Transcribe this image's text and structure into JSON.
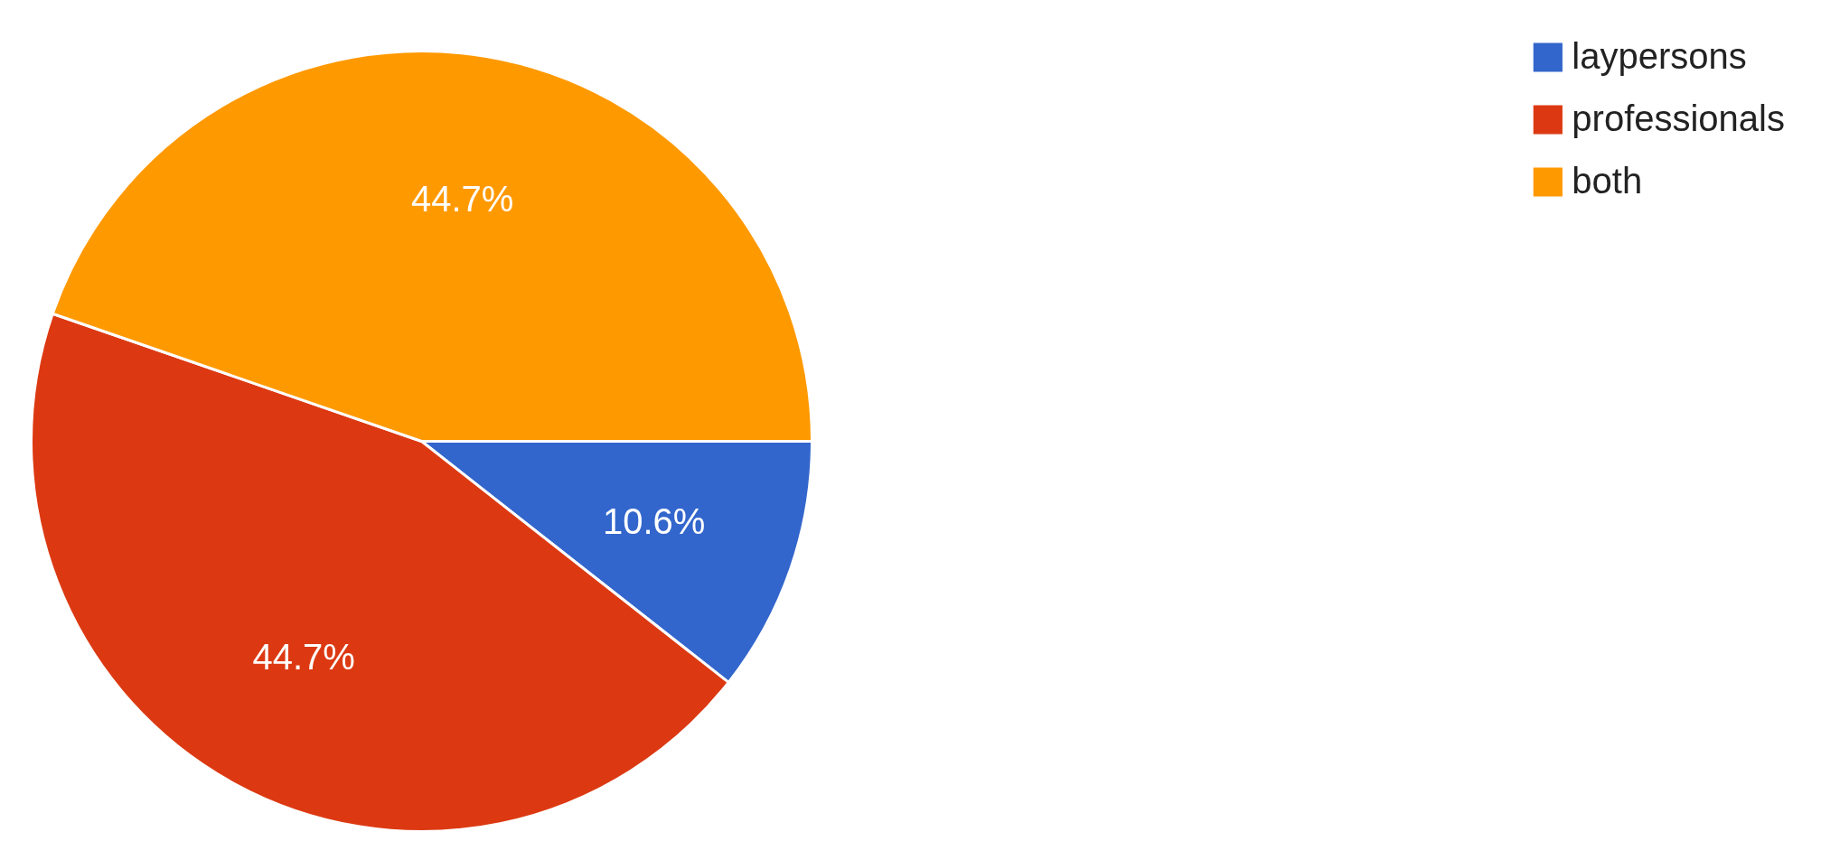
{
  "chart_data": {
    "type": "pie",
    "categories": [
      "laypersons",
      "professionals",
      "both"
    ],
    "values": [
      10.6,
      44.7,
      44.7
    ],
    "colors": [
      "#3366cc",
      "#dc3912",
      "#ff9900"
    ],
    "value_labels": [
      "10.6%",
      "44.7%",
      "44.7%"
    ],
    "legend": "top right"
  }
}
